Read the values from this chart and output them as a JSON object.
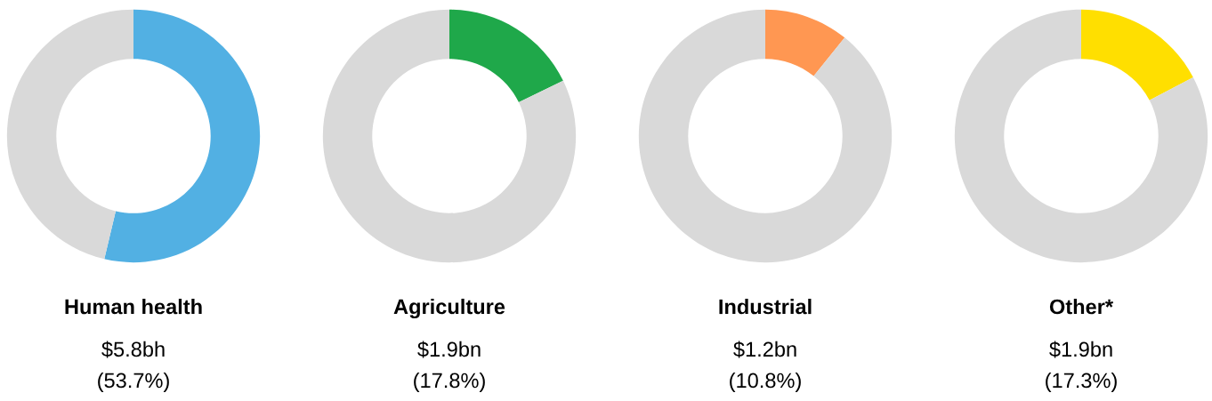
{
  "chart_data": [
    {
      "type": "donut",
      "title": "Human health",
      "categories": [
        null,
        null
      ],
      "values": [
        53.7,
        46.3
      ],
      "colors": [
        "#52b0e3",
        "#d9d9d9"
      ],
      "annotations": [
        "$5.8bh",
        "(53.7%)"
      ]
    },
    {
      "type": "donut",
      "title": "Agriculture",
      "categories": [
        null,
        null
      ],
      "values": [
        17.8,
        82.2
      ],
      "colors": [
        "#1fa84a",
        "#d9d9d9"
      ],
      "annotations": [
        "$1.9bn",
        "(17.8%)"
      ]
    },
    {
      "type": "donut",
      "title": "Industrial",
      "categories": [
        null,
        null
      ],
      "values": [
        10.8,
        89.2
      ],
      "colors": [
        "#ff9752",
        "#d9d9d9"
      ],
      "annotations": [
        "$1.2bn",
        "(10.8%)"
      ]
    },
    {
      "type": "donut",
      "title": "Other*",
      "categories": [
        null,
        null
      ],
      "values": [
        17.3,
        82.7
      ],
      "colors": [
        "#ffdf00",
        "#d9d9d9"
      ],
      "annotations": [
        "$1.9bn",
        "(17.3%)"
      ]
    }
  ]
}
